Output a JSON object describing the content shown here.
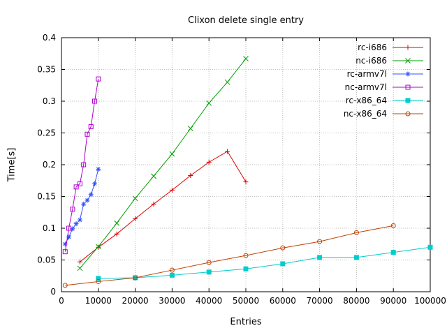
{
  "chart_data": {
    "type": "line",
    "title": "Clixon delete single entry",
    "xlabel": "Entries",
    "ylabel": "Time[s]",
    "xlim": [
      0,
      100000
    ],
    "ylim": [
      0,
      0.4
    ],
    "grid": true,
    "legend_position": "top-right-inside",
    "xtick_values": [
      0,
      10000,
      20000,
      30000,
      40000,
      50000,
      60000,
      70000,
      80000,
      90000,
      100000
    ],
    "xtick_labels": [
      "0",
      "10000",
      "20000",
      "30000",
      "40000",
      "50000",
      "60000",
      "70000",
      "80000",
      "90000",
      "100000"
    ],
    "ytick_values": [
      0,
      0.05,
      0.1,
      0.15,
      0.2,
      0.25,
      0.3,
      0.35,
      0.4
    ],
    "ytick_labels": [
      "0",
      "0.05",
      "0.1",
      "0.15",
      "0.2",
      "0.25",
      "0.3",
      "0.35",
      "0.4"
    ],
    "axis_color": "#000000",
    "grid_color": "#bebebe",
    "series": [
      {
        "name": "rc-i686",
        "color": "#e00000",
        "marker": "plus",
        "x": [
          5000,
          10000,
          15000,
          20000,
          25000,
          30000,
          35000,
          40000,
          45000,
          50000
        ],
        "y": [
          0.047,
          0.07,
          0.091,
          0.115,
          0.138,
          0.16,
          0.183,
          0.204,
          0.221,
          0.173
        ]
      },
      {
        "name": "nc-i686",
        "color": "#00a000",
        "marker": "cross",
        "x": [
          5000,
          10000,
          15000,
          20000,
          25000,
          30000,
          35000,
          40000,
          45000,
          50000
        ],
        "y": [
          0.037,
          0.071,
          0.108,
          0.147,
          0.182,
          0.217,
          0.257,
          0.297,
          0.33,
          0.367
        ]
      },
      {
        "name": "rc-armv7l",
        "color": "#3050ff",
        "marker": "asterisk",
        "x": [
          1000,
          2000,
          3000,
          4000,
          5000,
          6000,
          7000,
          8000,
          9000,
          10000
        ],
        "y": [
          0.075,
          0.086,
          0.099,
          0.107,
          0.113,
          0.138,
          0.144,
          0.153,
          0.17,
          0.193
        ]
      },
      {
        "name": "nc-armv7l",
        "color": "#b000d0",
        "marker": "square-open",
        "x": [
          1000,
          2000,
          3000,
          4000,
          5000,
          6000,
          7000,
          8000,
          9000,
          10000
        ],
        "y": [
          0.063,
          0.1,
          0.13,
          0.165,
          0.17,
          0.2,
          0.248,
          0.26,
          0.3,
          0.335
        ]
      },
      {
        "name": "rc-x86_64",
        "color": "#00cdcd",
        "marker": "square-filled",
        "x": [
          10000,
          20000,
          30000,
          40000,
          50000,
          60000,
          70000,
          80000,
          90000,
          100000
        ],
        "y": [
          0.021,
          0.022,
          0.026,
          0.031,
          0.036,
          0.044,
          0.054,
          0.054,
          0.062,
          0.07
        ]
      },
      {
        "name": "nc-x86_64",
        "color": "#c04000",
        "marker": "circle-open",
        "x": [
          1000,
          10000,
          20000,
          30000,
          40000,
          50000,
          60000,
          70000,
          80000,
          90000
        ],
        "y": [
          0.01,
          0.016,
          0.022,
          0.034,
          0.046,
          0.057,
          0.069,
          0.079,
          0.093,
          0.104
        ]
      }
    ]
  }
}
